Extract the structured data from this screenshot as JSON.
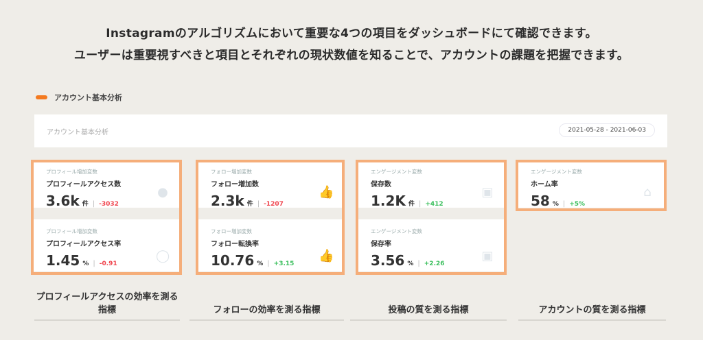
{
  "headline": [
    "Instagramのアルゴリズムにおいて重要な4つの項目をダッシュボードにて確認できます。",
    "ユーザーは重要視すべきと項目とそれぞれの現状数値を知ることで、アカウントの課題を把握できます。"
  ],
  "section_label": "アカウント基本分析",
  "panel": {
    "title": "アカウント基本分析",
    "date_range": "2021-05-28 - 2021-06-03"
  },
  "colors": {
    "accent": "#f47a20",
    "card_border": "#f5ae7a",
    "negative": "#f0454e",
    "positive": "#3cbf5e"
  },
  "cards": [
    {
      "caption": "プロフィールアクセスの効率を測る指標",
      "metrics": [
        {
          "category": "プロフィール増加変数",
          "name": "プロフィールアクセス数",
          "value": "3.6k",
          "unit": "件",
          "delta": "-3032",
          "trend": "negative",
          "icon": "user-circle-filled-icon"
        },
        {
          "category": "プロフィール増加変数",
          "name": "プロフィールアクセス率",
          "value": "1.45",
          "unit": "%",
          "delta": "-0.91",
          "trend": "negative",
          "icon": "user-circle-outline-icon"
        }
      ]
    },
    {
      "caption": "フォローの効率を測る指標",
      "metrics": [
        {
          "category": "フォロー増加変数",
          "name": "フォロー増加数",
          "value": "2.3k",
          "unit": "件",
          "delta": "-1207",
          "trend": "negative",
          "icon": "thumbs-up-filled-icon"
        },
        {
          "category": "フォロー増加変数",
          "name": "フォロー転換率",
          "value": "10.76",
          "unit": "%",
          "delta": "+3.15",
          "trend": "positive",
          "icon": "thumbs-up-outline-icon"
        }
      ]
    },
    {
      "caption": "投稿の質を測る指標",
      "metrics": [
        {
          "category": "エンゲージメント変数",
          "name": "保存数",
          "value": "1.2K",
          "unit": "件",
          "delta": "+412",
          "trend": "positive",
          "icon": "save-icon"
        },
        {
          "category": "エンゲージメント変数",
          "name": "保存率",
          "value": "3.56",
          "unit": "%",
          "delta": "+2.26",
          "trend": "positive",
          "icon": "save-icon"
        }
      ]
    },
    {
      "caption": "アカウントの質を測る指標",
      "metrics": [
        {
          "category": "エンゲージメント変数",
          "name": "ホーム率",
          "value": "58",
          "unit": "%",
          "delta": "+5%",
          "trend": "positive",
          "icon": "home-icon"
        }
      ]
    }
  ]
}
